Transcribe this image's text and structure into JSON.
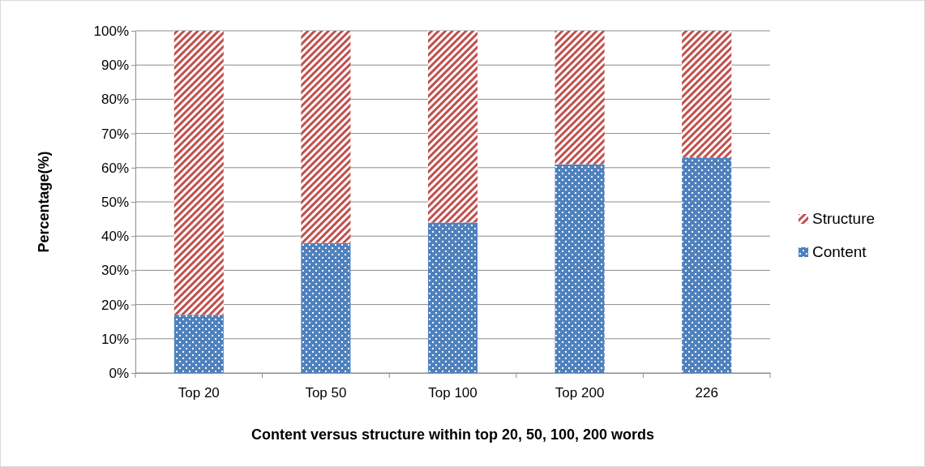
{
  "chart_data": {
    "type": "bar",
    "stacked": true,
    "xlabel": "Content versus structure within top 20, 50, 100, 200 words",
    "ylabel": "Percentage(%)",
    "categories": [
      "Top 20",
      "Top 50",
      "Top 100",
      "Top 200",
      "226"
    ],
    "series": [
      {
        "name": "Content",
        "color": "#4f81bd",
        "values": [
          17,
          38,
          44,
          61,
          63
        ]
      },
      {
        "name": "Structure",
        "color": "#c0504d",
        "values": [
          83,
          62,
          56,
          39,
          37
        ]
      }
    ],
    "ylim": [
      0,
      100
    ],
    "yticks": [
      {
        "value": 0,
        "label": "0%"
      },
      {
        "value": 10,
        "label": "10%"
      },
      {
        "value": 20,
        "label": "20%"
      },
      {
        "value": 30,
        "label": "30%"
      },
      {
        "value": 40,
        "label": "40%"
      },
      {
        "value": 50,
        "label": "50%"
      },
      {
        "value": 60,
        "label": "60%"
      },
      {
        "value": 70,
        "label": "70%"
      },
      {
        "value": 80,
        "label": "80%"
      },
      {
        "value": 90,
        "label": "90%"
      },
      {
        "value": 100,
        "label": "100%"
      }
    ],
    "grid": "y",
    "legend": "right"
  }
}
